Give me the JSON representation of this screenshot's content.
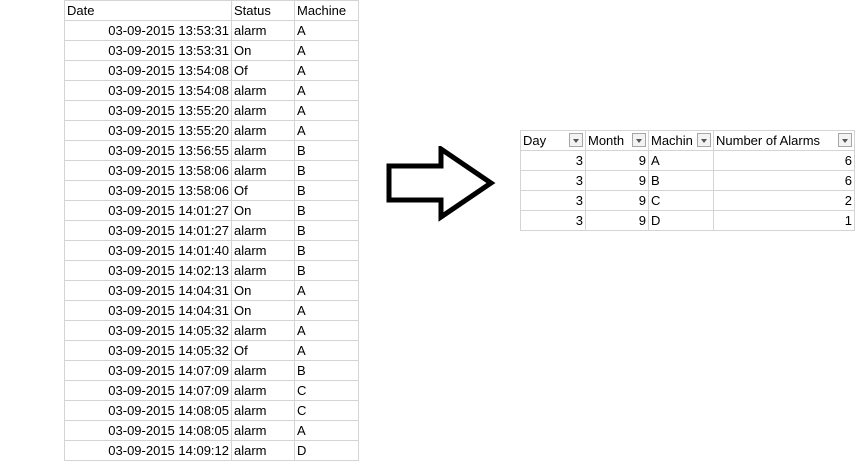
{
  "source_table": {
    "headers": [
      "Date",
      "Status",
      "Machine"
    ],
    "rows": [
      [
        "03-09-2015 13:53:31",
        "alarm",
        "A"
      ],
      [
        "03-09-2015 13:53:31",
        "On",
        "A"
      ],
      [
        "03-09-2015 13:54:08",
        "Of",
        "A"
      ],
      [
        "03-09-2015 13:54:08",
        "alarm",
        "A"
      ],
      [
        "03-09-2015 13:55:20",
        "alarm",
        "A"
      ],
      [
        "03-09-2015 13:55:20",
        "alarm",
        "A"
      ],
      [
        "03-09-2015 13:56:55",
        "alarm",
        "B"
      ],
      [
        "03-09-2015 13:58:06",
        "alarm",
        "B"
      ],
      [
        "03-09-2015 13:58:06",
        "Of",
        "B"
      ],
      [
        "03-09-2015 14:01:27",
        "On",
        "B"
      ],
      [
        "03-09-2015 14:01:27",
        "alarm",
        "B"
      ],
      [
        "03-09-2015 14:01:40",
        "alarm",
        "B"
      ],
      [
        "03-09-2015 14:02:13",
        "alarm",
        "B"
      ],
      [
        "03-09-2015 14:04:31",
        "On",
        "A"
      ],
      [
        "03-09-2015 14:04:31",
        "On",
        "A"
      ],
      [
        "03-09-2015 14:05:32",
        "alarm",
        "A"
      ],
      [
        "03-09-2015 14:05:32",
        "Of",
        "A"
      ],
      [
        "03-09-2015 14:07:09",
        "alarm",
        "B"
      ],
      [
        "03-09-2015 14:07:09",
        "alarm",
        "C"
      ],
      [
        "03-09-2015 14:08:05",
        "alarm",
        "C"
      ],
      [
        "03-09-2015 14:08:05",
        "alarm",
        "A"
      ],
      [
        "03-09-2015 14:09:12",
        "alarm",
        "D"
      ]
    ]
  },
  "arrow_icon": "right-arrow-outline",
  "result_table": {
    "headers": [
      "Day",
      "Month",
      "Machin",
      "Number of Alarms"
    ],
    "rows": [
      [
        3,
        9,
        "A",
        6
      ],
      [
        3,
        9,
        "B",
        6
      ],
      [
        3,
        9,
        "C",
        2
      ],
      [
        3,
        9,
        "D",
        1
      ]
    ]
  }
}
